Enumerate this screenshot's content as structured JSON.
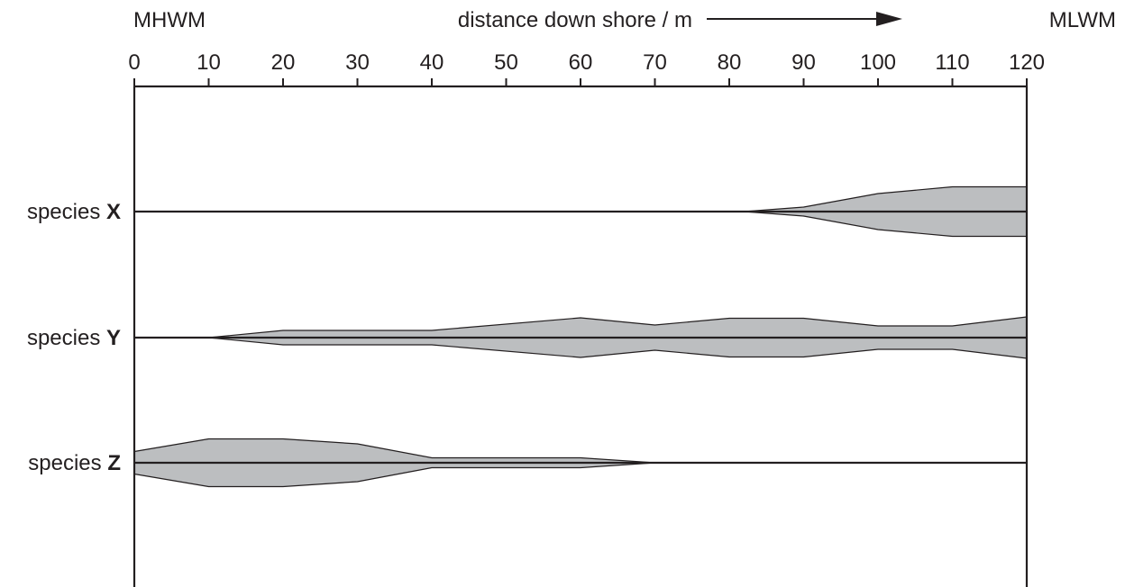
{
  "header": {
    "left_label": "MHWM",
    "center_label": "distance down shore / m",
    "right_label": "MLWM"
  },
  "colors": {
    "band_fill": "#bcbec0",
    "line": "#231f20",
    "background": "#ffffff"
  },
  "chart_data": {
    "type": "area",
    "xlabel": "distance down shore / m",
    "xlim": [
      0,
      120
    ],
    "xticks": [
      0,
      10,
      20,
      30,
      40,
      50,
      60,
      70,
      80,
      90,
      100,
      110,
      120
    ],
    "series": [
      {
        "name": "X",
        "label_prefix": "species",
        "x": [
          82,
          90,
          100,
          110,
          120
        ],
        "values": [
          0,
          10,
          40,
          55,
          55
        ]
      },
      {
        "name": "Y",
        "label_prefix": "species",
        "x": [
          10,
          20,
          40,
          60,
          70,
          80,
          90,
          100,
          110,
          120
        ],
        "values": [
          0,
          16,
          16,
          44,
          28,
          43,
          43,
          26,
          26,
          46
        ]
      },
      {
        "name": "Z",
        "label_prefix": "species",
        "x": [
          0,
          10,
          20,
          30,
          40,
          60,
          70
        ],
        "values": [
          25,
          53,
          53,
          42,
          11,
          11,
          0
        ]
      }
    ]
  }
}
